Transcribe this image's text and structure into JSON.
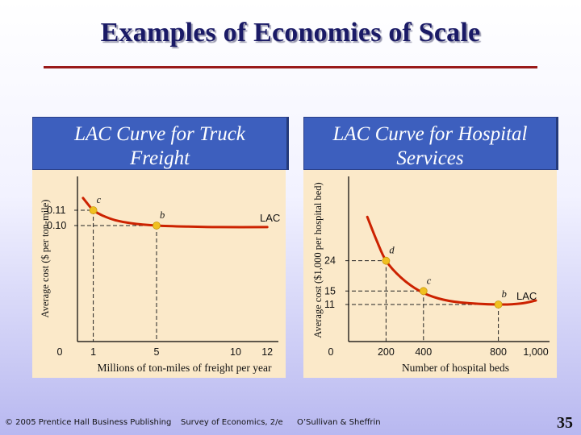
{
  "slide": {
    "title": "Examples of Economies of Scale",
    "footer_left": "© 2005 Prentice Hall Business Publishing",
    "footer_mid": "Survey of Economics, 2/e",
    "footer_right": "O’Sullivan & Sheffrin",
    "page_number": "35"
  },
  "colors": {
    "panel_title_bg": "#3d5fbe",
    "plot_bg": "#fbe9c9",
    "curve": "#cc2200",
    "point": "#f0c020",
    "title_rule": "#9a1a1a"
  },
  "chart_data": [
    {
      "type": "line",
      "title_lines": [
        "LAC Curve for Truck",
        "Freight"
      ],
      "xlabel": "Millions of ton-miles of freight per year",
      "ylabel": "Average cost ($ per ton-mile)",
      "x_ticks": [
        {
          "value": 0,
          "label": "0"
        },
        {
          "value": 1,
          "label": "1"
        },
        {
          "value": 5,
          "label": "5"
        },
        {
          "value": 10,
          "label": "10"
        },
        {
          "value": 12,
          "label": "12"
        }
      ],
      "y_ticks": [
        {
          "value": 0.11,
          "label": "0.11"
        },
        {
          "value": 0.1,
          "label": "0.10"
        }
      ],
      "xlim": [
        0,
        12
      ],
      "curve_label": "LAC",
      "curve": [
        [
          0.35,
          0.118
        ],
        [
          0.7,
          0.1135
        ],
        [
          1,
          0.11
        ],
        [
          1.6,
          0.1065
        ],
        [
          2.4,
          0.1035
        ],
        [
          3.4,
          0.1015
        ],
        [
          5,
          0.1
        ],
        [
          7,
          0.0993
        ],
        [
          9,
          0.099
        ],
        [
          12,
          0.099
        ]
      ],
      "points": [
        {
          "label": "c",
          "x": 1,
          "y": 0.11
        },
        {
          "label": "b",
          "x": 5,
          "y": 0.1
        }
      ]
    },
    {
      "type": "line",
      "title_lines": [
        "LAC Curve for Hospital",
        "Services"
      ],
      "xlabel": "Number of hospital beds",
      "ylabel": "Average cost ($1,000 per hospital bed)",
      "x_ticks": [
        {
          "value": 0,
          "label": "0"
        },
        {
          "value": 200,
          "label": "200"
        },
        {
          "value": 400,
          "label": "400"
        },
        {
          "value": 800,
          "label": "800"
        },
        {
          "value": 1000,
          "label": "1,000"
        }
      ],
      "y_ticks": [
        {
          "value": 24,
          "label": "24"
        },
        {
          "value": 15,
          "label": "15"
        },
        {
          "value": 11,
          "label": "11"
        }
      ],
      "xlim": [
        0,
        1000
      ],
      "curve_label": "LAC",
      "curve": [
        [
          100,
          37
        ],
        [
          150,
          30
        ],
        [
          200,
          24
        ],
        [
          280,
          19
        ],
        [
          380,
          15
        ],
        [
          480,
          12.8
        ],
        [
          600,
          11.6
        ],
        [
          800,
          11
        ],
        [
          920,
          11.3
        ],
        [
          1000,
          12.2
        ]
      ],
      "points": [
        {
          "label": "d",
          "x": 200,
          "y": 24
        },
        {
          "label": "c",
          "x": 400,
          "y": 15
        },
        {
          "label": "b",
          "x": 800,
          "y": 11
        }
      ]
    }
  ]
}
